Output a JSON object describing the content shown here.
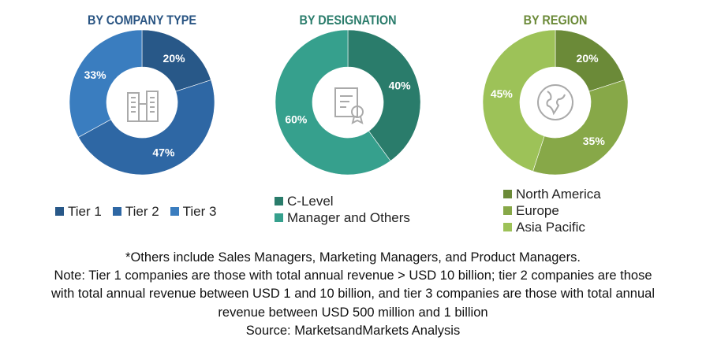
{
  "chart_data": [
    {
      "type": "pie",
      "title": "BY COMPANY TYPE",
      "categories": [
        "Tier 1",
        "Tier 2",
        "Tier 3"
      ],
      "values": [
        20,
        47,
        33
      ],
      "labels": [
        "20%",
        "47%",
        "33%"
      ],
      "colors": [
        "#285888",
        "#2e67a4",
        "#3a7dbf"
      ],
      "title_color": "#2a5583",
      "center_icon": "buildings-icon",
      "legend": "bottom"
    },
    {
      "type": "pie",
      "title": "BY DESIGNATION",
      "categories": [
        "C-Level",
        "Manager and Others"
      ],
      "values": [
        40,
        60
      ],
      "labels": [
        "40%",
        "60%"
      ],
      "colors": [
        "#2a7c6b",
        "#36a08d"
      ],
      "title_color": "#2a7c6b",
      "center_icon": "certificate-icon",
      "legend": "bottom"
    },
    {
      "type": "pie",
      "title": "BY REGION",
      "categories": [
        "North America",
        "Europe",
        "Asia Pacific"
      ],
      "values": [
        20,
        35,
        45
      ],
      "labels": [
        "20%",
        "35%",
        "45%"
      ],
      "colors": [
        "#6b8a38",
        "#87a848",
        "#9dc258"
      ],
      "title_color": "#6b8a38",
      "center_icon": "globe-icon",
      "legend": "bottom"
    }
  ],
  "notes": [
    "*Others include Sales Managers, Marketing Managers, and Product Managers.",
    "Note: Tier 1 companies are those with total annual revenue > USD 10 billion; tier 2 companies are those",
    "with total annual revenue between USD 1 and 10 billion, and tier 3 companies are those with total annual",
    "revenue between USD 500 million and 1 billion",
    "Source: MarketsandMarkets Analysis"
  ]
}
